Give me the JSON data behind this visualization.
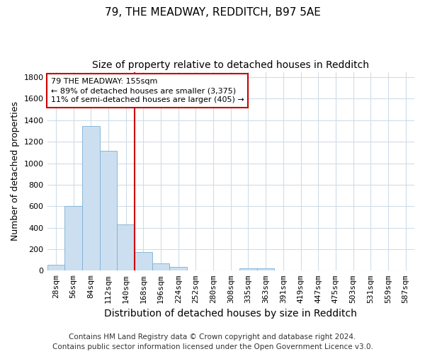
{
  "title1": "79, THE MEADWAY, REDDITCH, B97 5AE",
  "title2": "Size of property relative to detached houses in Redditch",
  "xlabel": "Distribution of detached houses by size in Redditch",
  "ylabel": "Number of detached properties",
  "footnote1": "Contains HM Land Registry data © Crown copyright and database right 2024.",
  "footnote2": "Contains public sector information licensed under the Open Government Licence v3.0.",
  "bar_labels": [
    "28sqm",
    "56sqm",
    "84sqm",
    "112sqm",
    "140sqm",
    "168sqm",
    "196sqm",
    "224sqm",
    "252sqm",
    "280sqm",
    "308sqm",
    "335sqm",
    "363sqm",
    "391sqm",
    "419sqm",
    "447sqm",
    "475sqm",
    "503sqm",
    "531sqm",
    "559sqm",
    "587sqm"
  ],
  "bar_values": [
    55,
    600,
    1345,
    1115,
    430,
    175,
    65,
    35,
    0,
    0,
    0,
    20,
    20,
    0,
    0,
    0,
    0,
    0,
    0,
    0,
    0
  ],
  "bar_color": "#ccdff0",
  "bar_edgecolor": "#7aafd4",
  "property_line_color": "#cc0000",
  "annotation_line1": "79 THE MEADWAY: 155sqm",
  "annotation_line2": "← 89% of detached houses are smaller (3,375)",
  "annotation_line3": "11% of semi-detached houses are larger (405) →",
  "annotation_box_edgecolor": "#cc0000",
  "ylim": [
    0,
    1850
  ],
  "yticks": [
    0,
    200,
    400,
    600,
    800,
    1000,
    1200,
    1400,
    1600,
    1800
  ],
  "bg_color": "#ffffff",
  "plot_bg_color": "#ffffff",
  "grid_color": "#d0dce8",
  "title1_fontsize": 11,
  "title2_fontsize": 10,
  "xlabel_fontsize": 10,
  "ylabel_fontsize": 9,
  "tick_fontsize": 8,
  "footnote_fontsize": 7.5
}
